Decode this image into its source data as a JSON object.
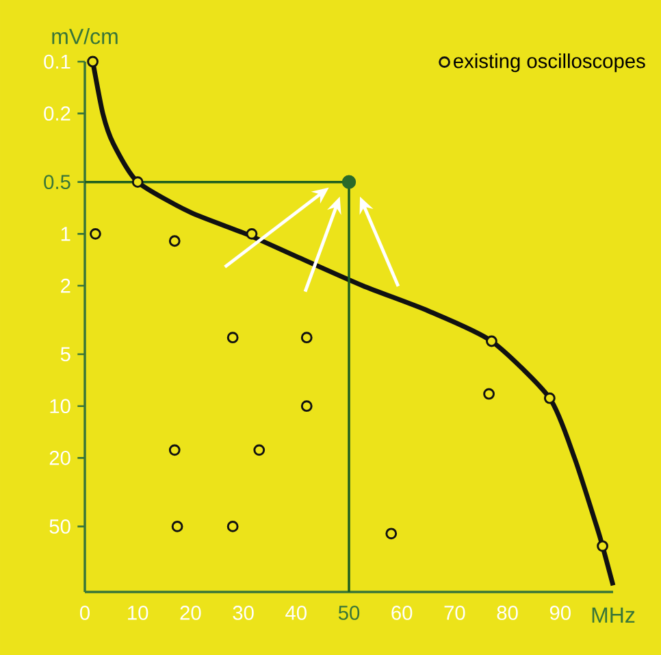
{
  "chart_data": {
    "type": "scatter",
    "xlabel": "MHz",
    "ylabel": "mV/cm",
    "log": "y",
    "marker": "circle",
    "legend": "top right",
    "grid": false,
    "xlim": [
      0,
      100
    ],
    "xticks": [
      0,
      10,
      20,
      30,
      40,
      50,
      60,
      70,
      80,
      90
    ],
    "ylim": [
      120,
      0.1
    ],
    "yticks": [
      0.1,
      0.2,
      0.5,
      1,
      2,
      5,
      10,
      20,
      50
    ],
    "series": [
      {
        "type": "line",
        "marker": "none",
        "color": "#111111",
        "x": [
          1.5,
          3.4,
          5.4,
          10,
          20,
          30.5,
          40,
          52.6,
          65,
          77,
          88,
          92.7,
          96.9,
          98,
          100
        ],
        "values": [
          0.1,
          0.2,
          0.3,
          0.5,
          0.75,
          1,
          1.35,
          2,
          2.8,
          4.2,
          9,
          20,
          50,
          65,
          110
        ]
      },
      {
        "type": "line",
        "marker": "none",
        "color": "#1e5e1e",
        "x": [
          0,
          50,
          50
        ],
        "values": [
          0.5,
          0.5,
          120
        ]
      },
      {
        "name": "existing oscilloscopes",
        "color": "#111111",
        "x": [
          1.5,
          2,
          10,
          17,
          31.6,
          28,
          42,
          42,
          17,
          33,
          17.5,
          28,
          58,
          77,
          76.5,
          88,
          98
        ],
        "values": [
          0.1,
          1,
          0.5,
          1.1,
          1,
          4,
          4,
          10,
          18,
          18,
          50,
          50,
          55,
          4.2,
          8.5,
          9,
          65
        ]
      },
      {
        "type": "scatter",
        "color": "#2a6a2a",
        "x": [
          50
        ],
        "values": [
          0.5
        ]
      }
    ]
  }
}
